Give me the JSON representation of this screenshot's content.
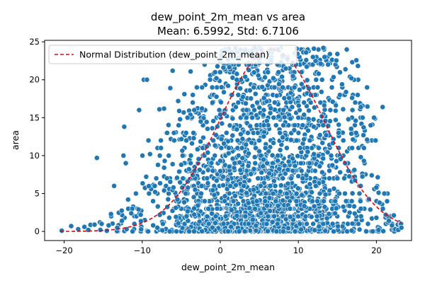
{
  "chart_data": {
    "type": "scatter",
    "title": "dew_point_2m_mean vs area",
    "subtitle": "Mean: 6.5992, Std: 6.7106",
    "xlabel": "dew_point_2m_mean",
    "ylabel": "area",
    "xlim": [
      -22.5,
      24.5
    ],
    "ylim": [
      -1.2,
      25.2
    ],
    "x_ticks": [
      -20,
      -10,
      0,
      10,
      20
    ],
    "y_ticks": [
      0,
      5,
      10,
      15,
      20,
      25
    ],
    "grid": false,
    "legend": {
      "placement": "top-left",
      "entries": [
        "Normal Distribution (dew_point_2m_mean)"
      ]
    },
    "colors": {
      "points": "#1f77b4",
      "point_edge": "#ffffff",
      "normal_curve": "#e8000b"
    },
    "series": [
      {
        "kind": "scatter",
        "x_range": [
          -20.5,
          23.2
        ],
        "y_range": [
          0,
          24.3
        ],
        "sample_points": [
          [
            -20.3,
            0.1
          ],
          [
            -19.1,
            0.7
          ],
          [
            -18.2,
            0.3
          ],
          [
            -17.4,
            0.6
          ],
          [
            -16.9,
            0.2
          ],
          [
            -16.1,
            0.9
          ],
          [
            -15.8,
            9.7
          ],
          [
            -15.2,
            1.0
          ],
          [
            -14.3,
            0.8
          ],
          [
            -14.0,
            2.3
          ],
          [
            -13.6,
            6.0
          ],
          [
            -13.2,
            0.5
          ],
          [
            -12.6,
            1.4
          ],
          [
            -12.4,
            10.0
          ],
          [
            -12.3,
            13.8
          ],
          [
            -12.1,
            9.0
          ],
          [
            -11.8,
            4.2
          ],
          [
            -11.4,
            2.4
          ],
          [
            -11.0,
            1.0
          ],
          [
            -10.8,
            5.0
          ],
          [
            -10.4,
            16.0
          ],
          [
            -10.2,
            2.2
          ],
          [
            -9.8,
            20.0
          ],
          [
            -9.4,
            20.0
          ],
          [
            -9.2,
            12.0
          ],
          [
            -9.0,
            10.2
          ],
          [
            -8.6,
            0.8
          ],
          [
            -8.2,
            7.0
          ],
          [
            -7.8,
            16.1
          ],
          [
            -7.6,
            11.0
          ],
          [
            -7.2,
            16.2
          ],
          [
            -6.8,
            13.0
          ],
          [
            -6.4,
            18.9
          ],
          [
            -6.1,
            21.2
          ],
          [
            -5.9,
            12.0
          ],
          [
            -5.4,
            17.2
          ],
          [
            -5.0,
            8.8
          ],
          [
            -4.6,
            18.1
          ],
          [
            -4.2,
            15.0
          ],
          [
            -3.8,
            21.1
          ],
          [
            -3.4,
            12.3
          ],
          [
            -3.0,
            19.0
          ],
          [
            -2.5,
            14.5
          ],
          [
            -2.0,
            22.0
          ],
          [
            -1.6,
            10.4
          ],
          [
            -1.0,
            17.0
          ],
          [
            -0.5,
            20.2
          ],
          [
            0.0,
            15.4
          ],
          [
            0.4,
            21.6
          ],
          [
            1.0,
            19.2
          ],
          [
            1.5,
            23.0
          ],
          [
            2.0,
            16.4
          ],
          [
            2.6,
            24.0
          ],
          [
            3.2,
            20.4
          ],
          [
            3.8,
            18.6
          ],
          [
            4.4,
            24.2
          ],
          [
            5.0,
            22.2
          ],
          [
            5.6,
            17.6
          ],
          [
            6.2,
            23.5
          ],
          [
            6.8,
            20.2
          ],
          [
            7.4,
            24.0
          ],
          [
            8.0,
            19.0
          ],
          [
            8.6,
            22.7
          ],
          [
            9.2,
            16.4
          ],
          [
            9.8,
            24.1
          ],
          [
            10.4,
            21.0
          ],
          [
            11.0,
            23.6
          ],
          [
            11.6,
            18.0
          ],
          [
            12.0,
            24.1
          ],
          [
            12.6,
            20.8
          ],
          [
            13.2,
            24.2
          ],
          [
            13.8,
            22.0
          ],
          [
            14.4,
            17.1
          ],
          [
            15.0,
            23.4
          ],
          [
            15.6,
            19.4
          ],
          [
            16.2,
            24.0
          ],
          [
            16.8,
            20.2
          ],
          [
            17.4,
            13.0
          ],
          [
            18.0,
            16.4
          ],
          [
            18.4,
            9.3
          ],
          [
            18.8,
            12.1
          ],
          [
            19.4,
            7.4
          ],
          [
            20.0,
            5.8
          ],
          [
            20.4,
            3.8
          ],
          [
            20.8,
            16.4
          ],
          [
            21.2,
            2.2
          ],
          [
            21.6,
            1.4
          ],
          [
            22.0,
            0.8
          ],
          [
            22.4,
            0.3
          ],
          [
            22.8,
            0.2
          ],
          [
            23.2,
            0.5
          ],
          [
            -12.0,
            0.3
          ],
          [
            -8.0,
            3.3
          ],
          [
            -6.0,
            5.8
          ],
          [
            -4.0,
            8.2
          ],
          [
            -2.0,
            4.0
          ],
          [
            0.0,
            9.3
          ],
          [
            2.0,
            6.1
          ],
          [
            4.0,
            11.7
          ],
          [
            6.0,
            3.4
          ],
          [
            8.0,
            12.4
          ],
          [
            10.0,
            7.3
          ],
          [
            12.0,
            10.2
          ],
          [
            14.0,
            5.4
          ],
          [
            16.0,
            9.0
          ],
          [
            18.0,
            3.0
          ],
          [
            20.0,
            1.8
          ]
        ]
      },
      {
        "kind": "line",
        "style": "dashed",
        "name": "Normal Distribution (dew_point_2m_mean)",
        "mean": 6.5992,
        "std": 6.7106,
        "x_range": [
          -20.5,
          23.2
        ],
        "y_range": [
          0,
          24.0
        ]
      }
    ]
  }
}
